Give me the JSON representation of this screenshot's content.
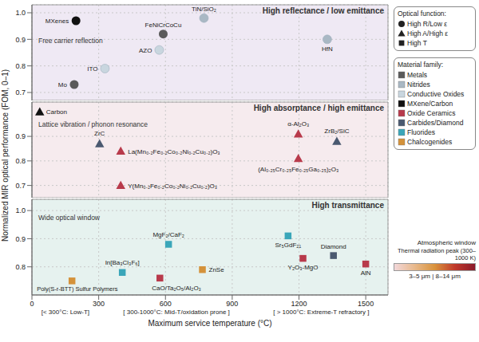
{
  "ylabel": "Normalized MIR optical performance (FOM, 0–1)",
  "chart_data": [
    {
      "type": "scatter",
      "title": "High reflectance / low emittance",
      "annotation": "Free carrier reflection",
      "marker": "circle",
      "xlim": [
        0,
        1600
      ],
      "xticks": [
        0,
        300,
        600,
        900,
        1200,
        1500
      ],
      "ylim": [
        0.67,
        1.03
      ],
      "yticks": [
        0.7,
        0.8,
        0.9,
        {
          "value": 1,
          "label": "1.0"
        }
      ],
      "grid": true,
      "tick_labels": "y",
      "series": [
        {
          "name": "Metals",
          "color": "#5a5a5a",
          "x": [
            590,
            190
          ],
          "values": [
            0.92,
            0.73
          ],
          "labels": [
            "FeNiCrCoCu",
            "Mo"
          ]
        },
        {
          "name": "Nitrides",
          "color": "#a9b8c4",
          "x": [
            773,
            1327
          ],
          "values": [
            0.98,
            0.9
          ],
          "labels": [
            "TiN/SiO₂",
            "HfN"
          ]
        },
        {
          "name": "Conductive Oxides",
          "color": "#c9d6df",
          "x": [
            328,
            572
          ],
          "values": [
            0.79,
            0.86
          ],
          "labels": [
            "ITO",
            "AZO"
          ]
        },
        {
          "name": "MXene/Carbon",
          "color": "#111111",
          "x": [
            198
          ],
          "values": [
            0.97
          ],
          "labels": [
            "MXenes"
          ]
        }
      ]
    },
    {
      "type": "scatter",
      "title": "High absorptance / high emittance",
      "annotation": "Lattice vibration / phonon resonance",
      "marker": "triangle",
      "xlim": [
        0,
        1600
      ],
      "xticks": [
        0,
        300,
        600,
        900,
        1200,
        1500
      ],
      "ylim": [
        0.65,
        1.04
      ],
      "yticks": [
        0.7,
        0.8,
        0.9
      ],
      "grid": true,
      "tick_labels": "y",
      "series": [
        {
          "name": "Oxide Ceramics",
          "color": "#b83a4b",
          "x": [
            399,
            399,
            1197,
            1197
          ],
          "values": [
            0.84,
            0.7,
            0.91,
            0.81
          ],
          "labels": [
            "La(Mn₀.₂Fe₀.₂Co₀.₂Ni₀.₂Cu₀.₂)O₃",
            "Y(Mn₀.₂Fe₀.₂Co₀.₂Ni₀.₂Cu₀.₂)O₃",
            "α-Al₂O₃",
            "(Al₀.₂₅Cr₀.₂₅Fe₀.₂₅Ga₀.₂₅)₂O₃"
          ]
        },
        {
          "name": "Carbides/Diamond",
          "color": "#4a5970",
          "x": [
            304,
            1370
          ],
          "values": [
            0.87,
            0.88
          ],
          "labels": [
            "ZrC",
            "ZrB₂/SiC"
          ]
        },
        {
          "name": "MXene/Carbon",
          "color": "#111111",
          "x": [
            35
          ],
          "values": [
            1.0
          ],
          "labels": [
            "Carbon"
          ]
        }
      ]
    },
    {
      "type": "scatter",
      "title": "High transmittance",
      "annotation": "Wide optical window",
      "marker": "square",
      "xlim": [
        0,
        1600
      ],
      "xticks": [
        0,
        300,
        600,
        900,
        1200,
        1500
      ],
      "ylim": [
        0.7,
        1.04
      ],
      "yticks": [
        0.8,
        0.9,
        {
          "value": 1,
          "label": "1.0"
        }
      ],
      "grid": true,
      "xlabel": "Maximum service temperature (°C)",
      "x_annotations": [
        "[< 300°C: Low-T]",
        "[ 300-1000°C: Mid-T/oxidation prone ]",
        "[ > 1000°C: Extreme-T refractory ]"
      ],
      "series": [
        {
          "name": "Fluorides",
          "color": "#3aa6b9",
          "x": [
            614,
            406,
            1151
          ],
          "values": [
            0.88,
            0.78,
            0.91
          ],
          "labels": [
            "MgF₂/CaF₂",
            "In[Ba₃Cl₃F₆]",
            "Sr₅GdF₂₁"
          ]
        },
        {
          "name": "Oxide Ceramics",
          "color": "#b83a4b",
          "x": [
            575,
            1218,
            1500
          ],
          "values": [
            0.76,
            0.83,
            0.81
          ],
          "labels": [
            "CaO/Ta₂O₅/Al₂O₃",
            "Y₂O₃-MgO",
            "AlN"
          ]
        },
        {
          "name": "Carbides/Diamond",
          "color": "#4a5970",
          "x": [
            1355
          ],
          "values": [
            0.84
          ],
          "labels": [
            "Diamond"
          ]
        },
        {
          "name": "Chalcogenides",
          "color": "#d4923a",
          "x": [
            180,
            766
          ],
          "values": [
            0.75,
            0.79
          ],
          "labels": [
            "Poly(S-r-BTT) Sulfur Polymers",
            "ZnSe"
          ]
        }
      ]
    }
  ],
  "legend_boxes": [
    {
      "title": "Optical function:",
      "items": [
        {
          "name": "High R/Low ε",
          "marker": "circle"
        },
        {
          "name": "High A/High ε",
          "marker": "triangle"
        },
        {
          "name": "High T",
          "marker": "square"
        }
      ]
    },
    {
      "title": "Material family:",
      "items": [
        {
          "name": "Metals",
          "color": "#5a5a5a"
        },
        {
          "name": "Nitrides",
          "color": "#a9b8c4"
        },
        {
          "name": "Conductive Oxides",
          "color": "#c9d6df"
        },
        {
          "name": "MXene/Carbon",
          "color": "#111111"
        },
        {
          "name": "Oxide Ceramics",
          "color": "#b83a4b"
        },
        {
          "name": "Carbides/Diamond",
          "color": "#4a5970"
        },
        {
          "name": "Fluorides",
          "color": "#3aa6b9"
        },
        {
          "name": "Chalcogenides",
          "color": "#d4923a"
        }
      ]
    }
  ],
  "colorbar": {
    "title": "Atmospheric window",
    "subtitle": "Thermal radiation peak (300–1000 K)",
    "label": "3–5 μm | 8–14 μm",
    "colors": [
      "#f2d7da",
      "#e8b98c",
      "#d9933c",
      "#c0392b",
      "#8b1a2b"
    ]
  }
}
